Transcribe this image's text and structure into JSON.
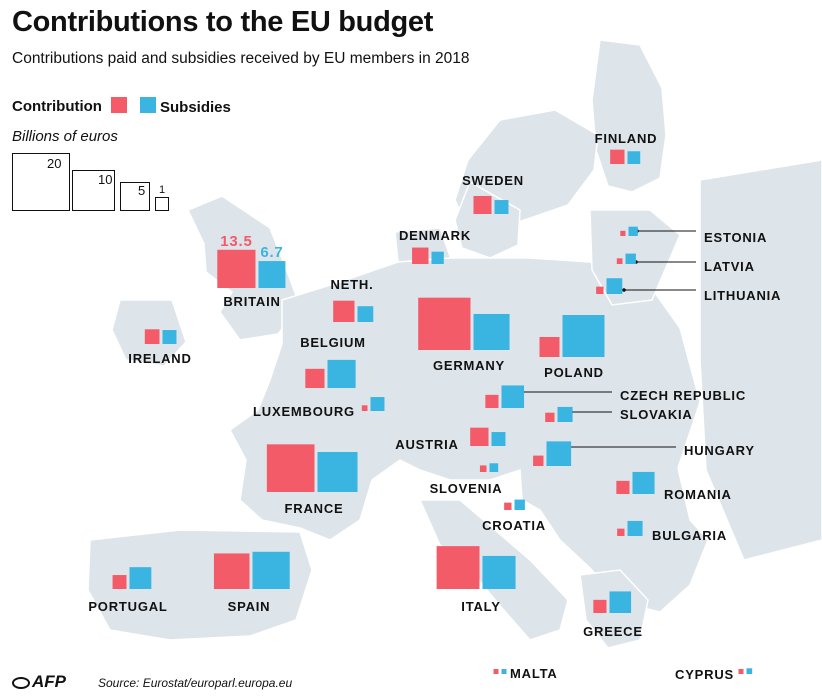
{
  "title": "Contributions to the EU budget",
  "subtitle": "Contributions paid and subsidies received by EU members in 2018",
  "legend": {
    "contribution": "Contribution",
    "subsidies": "Subsidies",
    "contribution_color": "#f45b69",
    "subsidies_color": "#3ab4e0"
  },
  "unit_label": "Billions of euros",
  "scale_values": [
    "20",
    "10",
    "5",
    "1"
  ],
  "source": "Source: Eurostat/europarl.europa.eu",
  "logo_text": "AFP",
  "map_color": "#dde4ea",
  "chart_data": {
    "type": "proportional-squares-map",
    "unit": "Billions of euros",
    "highlight_values": {
      "country": "BRITAIN",
      "contribution": "13.5",
      "subsidies": "6.7"
    },
    "countries": [
      {
        "name": "FINLAND",
        "contribution": 1.9,
        "subsidies": 1.5
      },
      {
        "name": "SWEDEN",
        "contribution": 3.0,
        "subsidies": 1.8
      },
      {
        "name": "DENMARK",
        "contribution": 2.5,
        "subsidies": 1.4
      },
      {
        "name": "ESTONIA",
        "contribution": 0.25,
        "subsidies": 0.8
      },
      {
        "name": "LATVIA",
        "contribution": 0.3,
        "subsidies": 1.0
      },
      {
        "name": "LITHUANIA",
        "contribution": 0.5,
        "subsidies": 2.3
      },
      {
        "name": "BRITAIN",
        "contribution": 13.5,
        "subsidies": 6.7
      },
      {
        "name": "NETH.",
        "contribution": 4.2,
        "subsidies": 2.3
      },
      {
        "name": "IRELAND",
        "contribution": 2.0,
        "subsidies": 1.8
      },
      {
        "name": "BELGIUM",
        "contribution": 3.4,
        "subsidies": 7.3
      },
      {
        "name": "GERMANY",
        "contribution": 25.3,
        "subsidies": 12.0
      },
      {
        "name": "POLAND",
        "contribution": 3.7,
        "subsidies": 16.3
      },
      {
        "name": "LUXEMBOURG",
        "contribution": 0.3,
        "subsidies": 1.8
      },
      {
        "name": "CZECH REPUBLIC",
        "contribution": 1.6,
        "subsidies": 4.7
      },
      {
        "name": "SLOVAKIA",
        "contribution": 0.8,
        "subsidies": 2.1
      },
      {
        "name": "AUSTRIA",
        "contribution": 3.1,
        "subsidies": 1.8
      },
      {
        "name": "HUNGARY",
        "contribution": 1.0,
        "subsidies": 5.6
      },
      {
        "name": "FRANCE",
        "contribution": 21.0,
        "subsidies": 14.8
      },
      {
        "name": "SLOVENIA",
        "contribution": 0.4,
        "subsidies": 0.7
      },
      {
        "name": "ROMANIA",
        "contribution": 1.6,
        "subsidies": 4.5
      },
      {
        "name": "CROATIA",
        "contribution": 0.5,
        "subsidies": 1.0
      },
      {
        "name": "BULGARIA",
        "contribution": 0.5,
        "subsidies": 2.1
      },
      {
        "name": "PORTUGAL",
        "contribution": 1.8,
        "subsidies": 4.4
      },
      {
        "name": "SPAIN",
        "contribution": 11.7,
        "subsidies": 12.8
      },
      {
        "name": "ITALY",
        "contribution": 17.0,
        "subsidies": 10.1
      },
      {
        "name": "GREECE",
        "contribution": 1.6,
        "subsidies": 4.3
      },
      {
        "name": "MALTA",
        "contribution": 0.1,
        "subsidies": 0.15
      },
      {
        "name": "CYPRUS",
        "contribution": 0.2,
        "subsidies": 0.3
      }
    ]
  }
}
